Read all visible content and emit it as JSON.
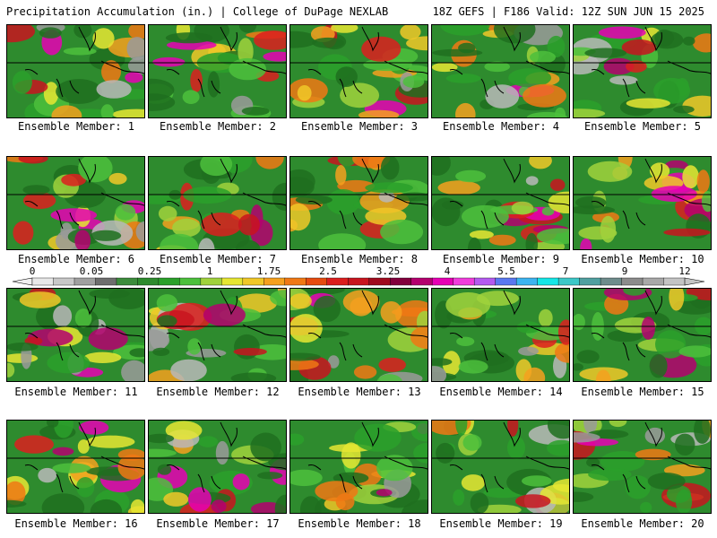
{
  "header": {
    "left": "Precipitation Accumulation (in.) | College of DuPage NEXLAB",
    "right": "18Z GEFS | F186 Valid: 12Z SUN JUN 15 2025"
  },
  "colorbar": {
    "labels": [
      "0",
      "0.05",
      "0.25",
      "1",
      "1.75",
      "2.5",
      "3.25",
      "4",
      "5.5",
      "7",
      "9",
      "12"
    ],
    "colors": [
      "#e8e8e8",
      "#c8c8c8",
      "#a0a0a0",
      "#6e6e6e",
      "#3c8c3c",
      "#2e8b2e",
      "#2aa02a",
      "#4cc03c",
      "#a0d23c",
      "#e6e632",
      "#f0c828",
      "#f5a01e",
      "#f07814",
      "#e64b0f",
      "#dc1e1e",
      "#c8141e",
      "#a00a1e",
      "#82003c",
      "#b4006e",
      "#e600b4",
      "#f03cdc",
      "#b45af0",
      "#5a78f0",
      "#3cb4f0",
      "#14e6e6",
      "#3cc8c8",
      "#50a0a0",
      "#6e8c8c",
      "#8c8c8c",
      "#a8a8a8",
      "#c4c4c4"
    ]
  },
  "panels": [
    {
      "label": "Ensemble Member: 1"
    },
    {
      "label": "Ensemble Member: 2"
    },
    {
      "label": "Ensemble Member: 3"
    },
    {
      "label": "Ensemble Member: 4"
    },
    {
      "label": "Ensemble Member: 5"
    },
    {
      "label": "Ensemble Member: 6"
    },
    {
      "label": "Ensemble Member: 7"
    },
    {
      "label": "Ensemble Member: 8"
    },
    {
      "label": "Ensemble Member: 9"
    },
    {
      "label": "Ensemble Member: 10"
    },
    {
      "label": "Ensemble Member: 11"
    },
    {
      "label": "Ensemble Member: 12"
    },
    {
      "label": "Ensemble Member: 13"
    },
    {
      "label": "Ensemble Member: 14"
    },
    {
      "label": "Ensemble Member: 15"
    },
    {
      "label": "Ensemble Member: 16"
    },
    {
      "label": "Ensemble Member: 17"
    },
    {
      "label": "Ensemble Member: 18"
    },
    {
      "label": "Ensemble Member: 19"
    },
    {
      "label": "Ensemble Member: 20"
    }
  ]
}
